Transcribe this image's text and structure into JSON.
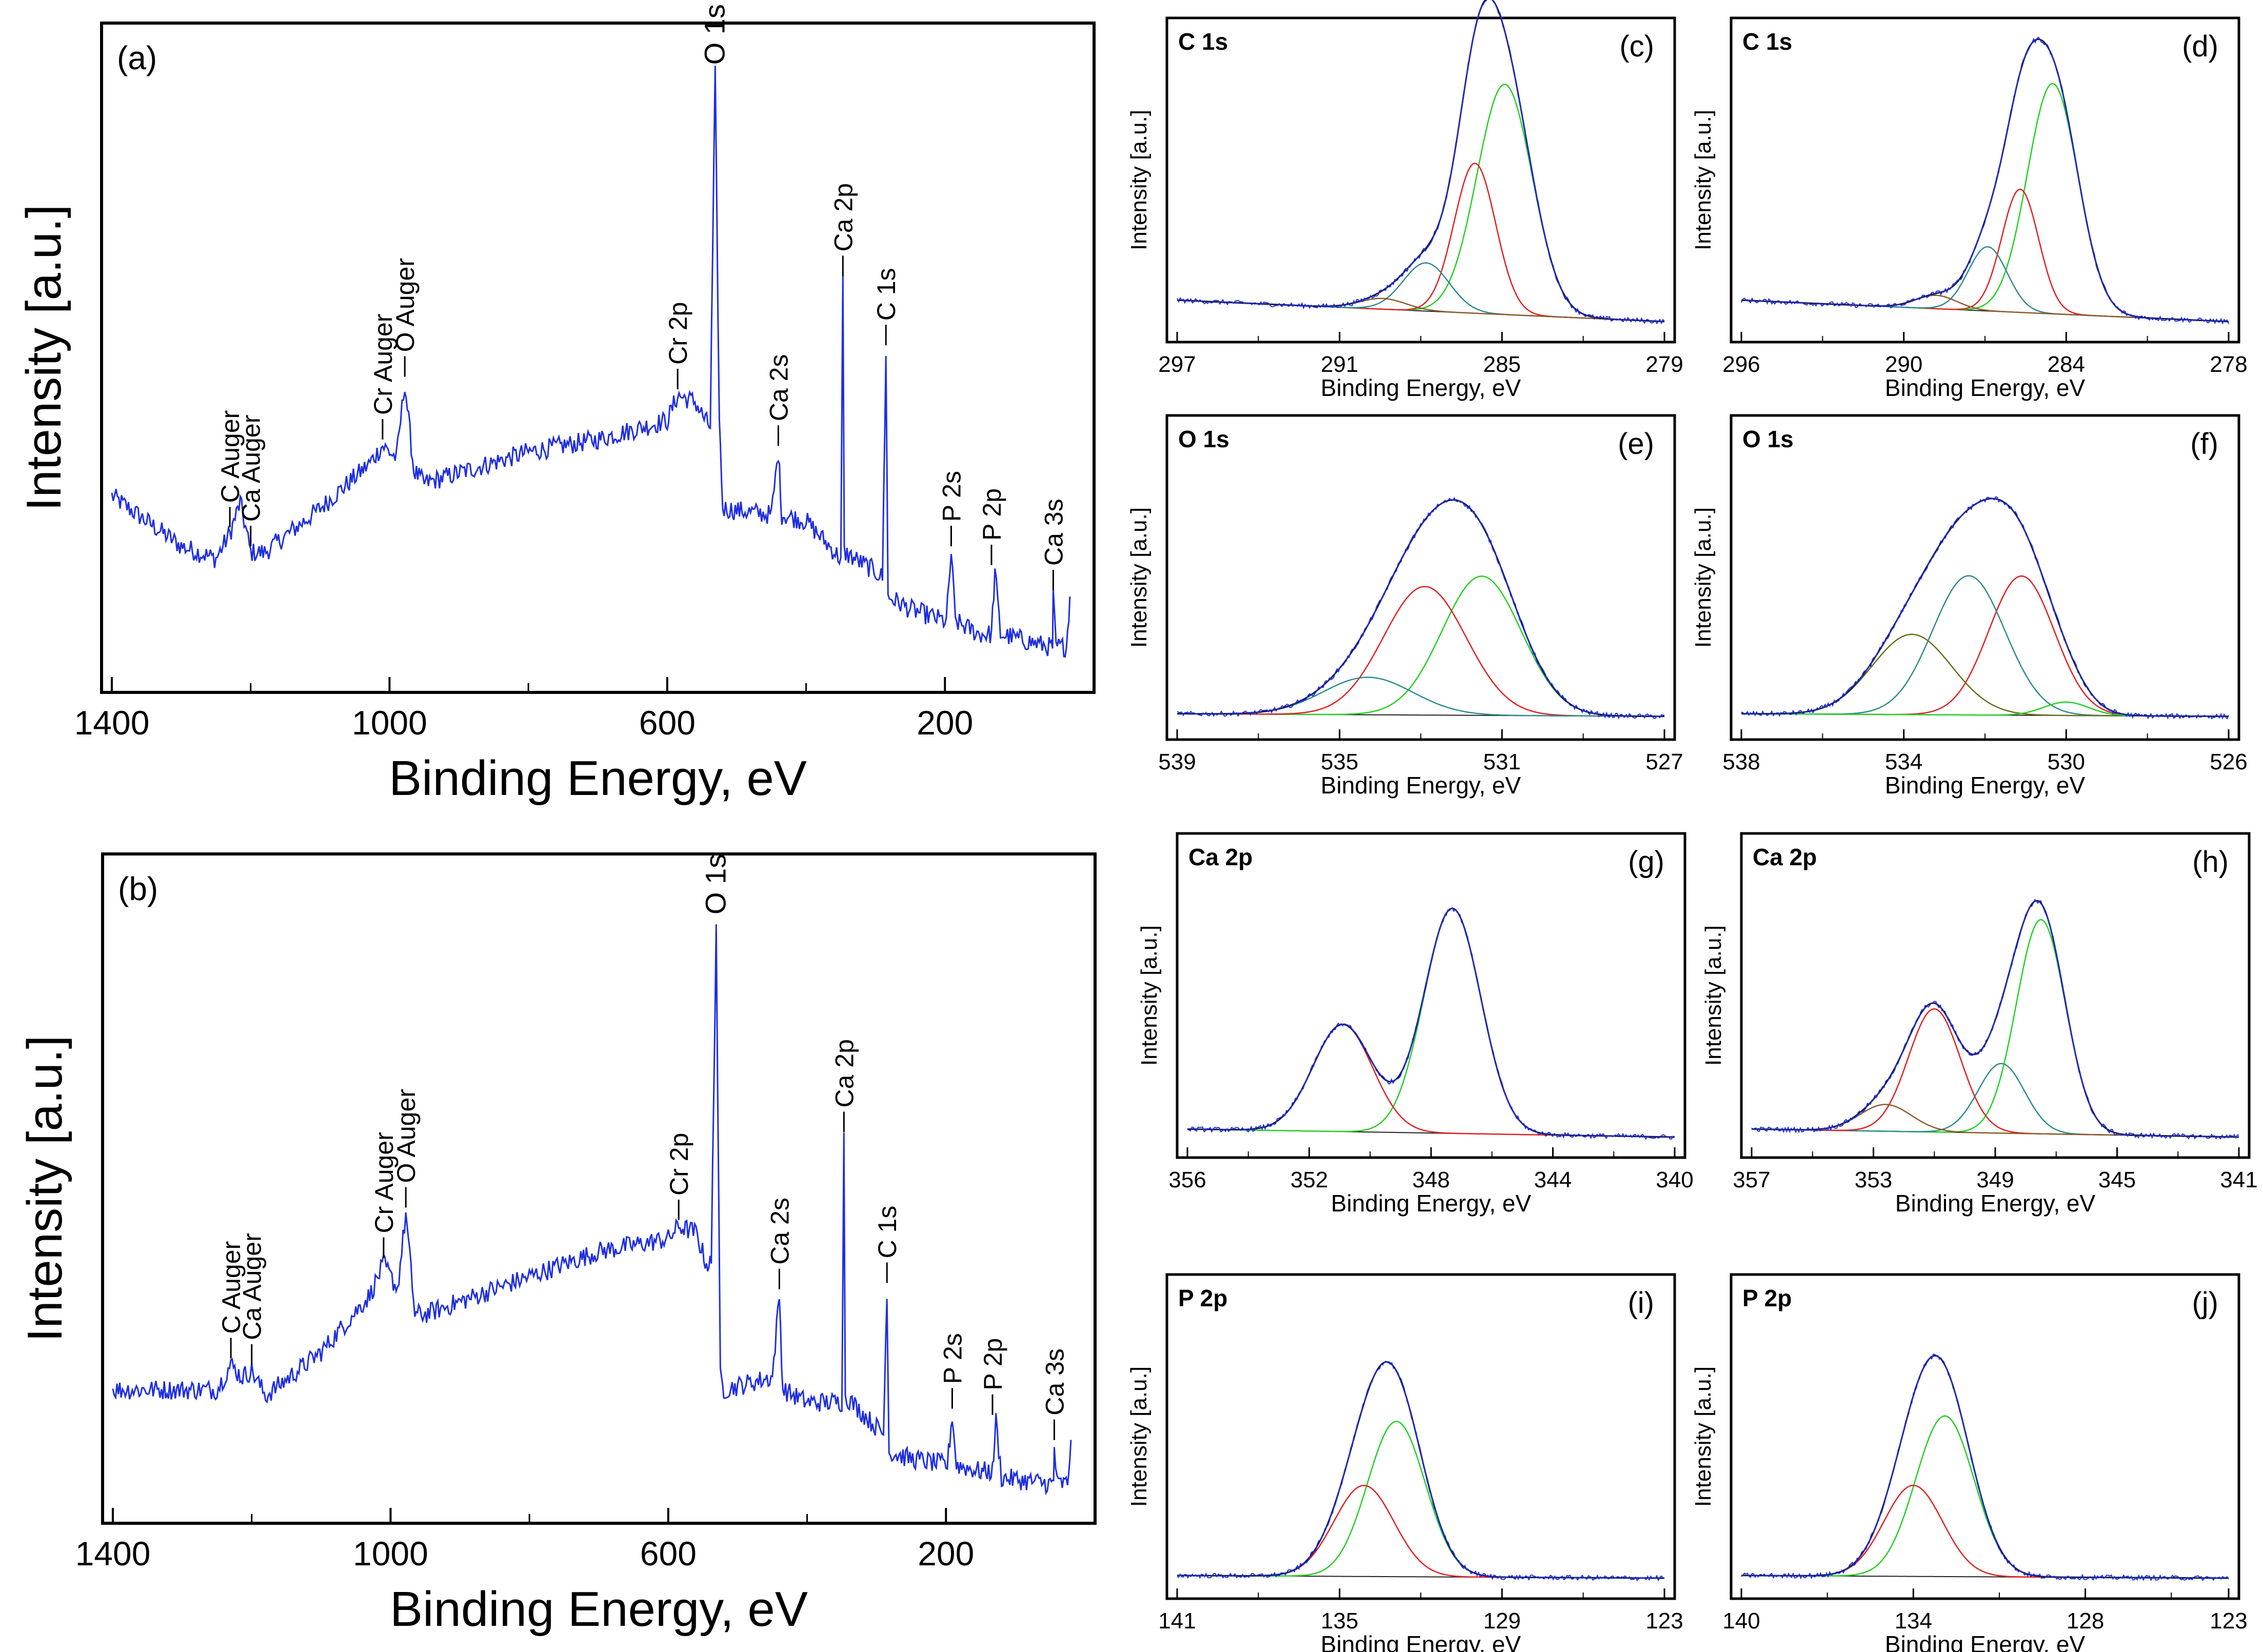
{
  "figure": {
    "colors": {
      "spectrum": "#1f2fe0",
      "envelope": "#1a1a40",
      "background": "#202020"
    },
    "y_axis_common": "Intensity [a.u.]",
    "x_axis_common": "Binding Energy, eV"
  },
  "chart_data": [
    {
      "id": "a",
      "type": "line",
      "panel_label": "(a)",
      "title": "",
      "xlabel": "Binding Energy, eV",
      "ylabel": "Intensity [a.u.]",
      "xlim": [
        1400,
        0
      ],
      "reversed_x": true,
      "ylim": [
        0,
        100
      ],
      "xticks": [
        1400,
        1000,
        600,
        200
      ],
      "series": [
        {
          "name": "survey",
          "x": [
            1400,
            1300,
            1250,
            1230,
            1215,
            1200,
            1180,
            1100,
            1030,
            1010,
            990,
            978,
            965,
            950,
            800,
            700,
            600,
            585,
            560,
            545,
            538,
            531,
            525,
            520,
            450,
            440,
            435,
            400,
            350,
            347,
            345,
            300,
            290,
            285,
            282,
            250,
            198,
            191,
            185,
            150,
            133,
            128,
            120,
            50,
            45,
            44,
            40,
            25,
            20
          ],
          "y": [
            28,
            20,
            18,
            22,
            27,
            19,
            19,
            26,
            33,
            36,
            34,
            46,
            32,
            30,
            35,
            37,
            40,
            44,
            43,
            40,
            39,
            95,
            40,
            26,
            25,
            35,
            25,
            24,
            18,
            62,
            19,
            16,
            15,
            51,
            12,
            10,
            8,
            19,
            8,
            6,
            6,
            16,
            6,
            4,
            4,
            12,
            4,
            4,
            12
          ]
        }
      ],
      "annotations": [
        {
          "text": "C Auger",
          "x": 1230
        },
        {
          "text": "Ca Auger",
          "x": 1200
        },
        {
          "text": "Cr Auger",
          "x": 1010
        },
        {
          "text": "O Auger",
          "x": 978
        },
        {
          "text": "Cr 2p",
          "x": 585
        },
        {
          "text": "O 1s",
          "x": 531
        },
        {
          "text": "Ca 2s",
          "x": 440
        },
        {
          "text": "Ca 2p",
          "x": 347
        },
        {
          "text": "C 1s",
          "x": 285
        },
        {
          "text": "P 2s",
          "x": 191
        },
        {
          "text": "P 2p",
          "x": 133
        },
        {
          "text": "Ca 3s",
          "x": 44
        }
      ]
    },
    {
      "id": "b",
      "type": "line",
      "panel_label": "(b)",
      "title": "",
      "xlabel": "Binding Energy, eV",
      "ylabel": "Intensity [a.u.]",
      "xlim": [
        1400,
        0
      ],
      "reversed_x": true,
      "ylim": [
        0,
        100
      ],
      "xticks": [
        1400,
        1000,
        600,
        200
      ],
      "series": [
        {
          "name": "survey",
          "x": [
            1400,
            1300,
            1250,
            1230,
            1215,
            1200,
            1180,
            1100,
            1030,
            1010,
            990,
            978,
            965,
            950,
            800,
            700,
            600,
            585,
            560,
            545,
            538,
            531,
            525,
            520,
            450,
            440,
            435,
            400,
            350,
            347,
            345,
            300,
            290,
            285,
            282,
            250,
            198,
            191,
            185,
            150,
            133,
            128,
            120,
            50,
            45,
            44,
            40,
            25,
            20
          ],
          "y": [
            18,
            18,
            18,
            22,
            20,
            21,
            17,
            24,
            33,
            38,
            34,
            46,
            30,
            30,
            36,
            40,
            42,
            44,
            43,
            38,
            38,
            92,
            20,
            18,
            20,
            33,
            18,
            16,
            16,
            58,
            17,
            12,
            11,
            34,
            8,
            7,
            6,
            14,
            6,
            5,
            5,
            13,
            4,
            3,
            3,
            9,
            3,
            3,
            10
          ]
        }
      ],
      "annotations": [
        {
          "text": "C Auger",
          "x": 1230
        },
        {
          "text": "Ca Auger",
          "x": 1200
        },
        {
          "text": "Cr Auger",
          "x": 1010
        },
        {
          "text": "O Auger",
          "x": 978
        },
        {
          "text": "Cr 2p",
          "x": 585
        },
        {
          "text": "O 1s",
          "x": 531
        },
        {
          "text": "Ca 2s",
          "x": 440
        },
        {
          "text": "Ca 2p",
          "x": 347
        },
        {
          "text": "C 1s",
          "x": 285
        },
        {
          "text": "P 2s",
          "x": 191
        },
        {
          "text": "P 2p",
          "x": 133
        },
        {
          "text": "Ca 3s",
          "x": 44
        }
      ]
    },
    {
      "id": "c",
      "type": "line",
      "panel_label": "(c)",
      "title": "C 1s",
      "xlabel": "Binding Energy, eV",
      "ylabel": "Intensity [a.u.]",
      "xlim": [
        297,
        279
      ],
      "reversed_x": true,
      "ylim": [
        0,
        100
      ],
      "xticks": [
        297,
        291,
        285,
        279
      ],
      "background": {
        "start": 8,
        "end": 0
      },
      "components": [
        {
          "name": "green",
          "color": "#22d022",
          "center": 284.9,
          "fwhm": 2.4,
          "height": 86
        },
        {
          "name": "red",
          "color": "#e02020",
          "center": 286.0,
          "fwhm": 1.8,
          "height": 56
        },
        {
          "name": "teal",
          "color": "#2e8b8b",
          "center": 287.8,
          "fwhm": 2.0,
          "height": 18
        },
        {
          "name": "brown",
          "color": "#8b5a2b",
          "center": 289.4,
          "fwhm": 2.0,
          "height": 4
        }
      ]
    },
    {
      "id": "d",
      "type": "line",
      "panel_label": "(d)",
      "title": "C 1s",
      "xlabel": "Binding Energy, eV",
      "ylabel": "Intensity [a.u.]",
      "xlim": [
        296,
        278
      ],
      "reversed_x": true,
      "ylim": [
        0,
        100
      ],
      "xticks": [
        296,
        290,
        284,
        278
      ],
      "background": {
        "start": 8,
        "end": 0
      },
      "components": [
        {
          "name": "green",
          "color": "#22d022",
          "center": 284.5,
          "fwhm": 2.2,
          "height": 86
        },
        {
          "name": "red",
          "color": "#e02020",
          "center": 285.7,
          "fwhm": 1.6,
          "height": 46
        },
        {
          "name": "teal",
          "color": "#2e8b8b",
          "center": 286.9,
          "fwhm": 1.7,
          "height": 24
        },
        {
          "name": "brown",
          "color": "#8b5a2b",
          "center": 288.8,
          "fwhm": 1.8,
          "height": 5
        }
      ]
    },
    {
      "id": "e",
      "type": "line",
      "panel_label": "(e)",
      "title": "O 1s",
      "xlabel": "Binding Energy, eV",
      "ylabel": "Intensity [a.u.]",
      "xlim": [
        539,
        527
      ],
      "reversed_x": true,
      "ylim": [
        0,
        100
      ],
      "xticks": [
        539,
        535,
        531,
        527
      ],
      "background": {
        "start": 2,
        "end": 1
      },
      "components": [
        {
          "name": "green",
          "color": "#22d022",
          "center": 531.5,
          "fwhm": 2.3,
          "height": 52
        },
        {
          "name": "red",
          "color": "#e02020",
          "center": 532.9,
          "fwhm": 2.4,
          "height": 48
        },
        {
          "name": "teal",
          "color": "#2e8b8b",
          "center": 534.3,
          "fwhm": 2.6,
          "height": 14
        }
      ]
    },
    {
      "id": "f",
      "type": "line",
      "panel_label": "(f)",
      "title": "O 1s",
      "xlabel": "Binding Energy, eV",
      "ylabel": "Intensity [a.u.]",
      "xlim": [
        538,
        526
      ],
      "reversed_x": true,
      "ylim": [
        0,
        100
      ],
      "xticks": [
        538,
        534,
        530,
        526
      ],
      "background": {
        "start": 2,
        "end": 1
      },
      "components": [
        {
          "name": "red",
          "color": "#e02020",
          "center": 531.1,
          "fwhm": 1.9,
          "height": 52
        },
        {
          "name": "teal",
          "color": "#2e8b8b",
          "center": 532.4,
          "fwhm": 2.1,
          "height": 52
        },
        {
          "name": "brown",
          "color": "#6b6b1a",
          "center": 533.8,
          "fwhm": 2.3,
          "height": 30
        },
        {
          "name": "green",
          "color": "#22d022",
          "center": 530.0,
          "fwhm": 1.3,
          "height": 5
        }
      ]
    },
    {
      "id": "g",
      "type": "line",
      "panel_label": "(g)",
      "title": "Ca 2p",
      "xlabel": "Binding Energy, eV",
      "ylabel": "Intensity [a.u.]",
      "xlim": [
        356,
        340
      ],
      "reversed_x": true,
      "ylim": [
        0,
        100
      ],
      "xticks": [
        356,
        352,
        348,
        344,
        340
      ],
      "background": {
        "start": 3,
        "end": 0
      },
      "components": [
        {
          "name": "green",
          "color": "#22d022",
          "center": 347.3,
          "fwhm": 2.2,
          "height": 84
        },
        {
          "name": "red",
          "color": "#e02020",
          "center": 350.9,
          "fwhm": 2.3,
          "height": 40
        }
      ]
    },
    {
      "id": "h",
      "type": "line",
      "panel_label": "(h)",
      "title": "Ca 2p",
      "xlabel": "Binding Energy, eV",
      "ylabel": "Intensity [a.u.]",
      "xlim": [
        357,
        341
      ],
      "reversed_x": true,
      "ylim": [
        0,
        100
      ],
      "xticks": [
        357,
        353,
        349,
        345,
        341
      ],
      "background": {
        "start": 3,
        "end": 0
      },
      "components": [
        {
          "name": "green",
          "color": "#22d022",
          "center": 347.5,
          "fwhm": 1.9,
          "height": 80
        },
        {
          "name": "teal",
          "color": "#2e8b8b",
          "center": 348.8,
          "fwhm": 1.8,
          "height": 26
        },
        {
          "name": "red",
          "color": "#e02020",
          "center": 351.0,
          "fwhm": 2.0,
          "height": 46
        },
        {
          "name": "brown",
          "color": "#8b5a2b",
          "center": 352.6,
          "fwhm": 2.0,
          "height": 10
        }
      ]
    },
    {
      "id": "i",
      "type": "line",
      "panel_label": "(i)",
      "title": "P 2p",
      "xlabel": "Binding Energy, eV",
      "ylabel": "Intensity [a.u.]",
      "xlim": [
        141,
        123
      ],
      "reversed_x": true,
      "ylim": [
        0,
        100
      ],
      "xticks": [
        141,
        135,
        129,
        123
      ],
      "background": {
        "start": 1,
        "end": 0
      },
      "components": [
        {
          "name": "green",
          "color": "#22d022",
          "center": 132.9,
          "fwhm": 2.5,
          "height": 58
        },
        {
          "name": "red",
          "color": "#e02020",
          "center": 134.1,
          "fwhm": 2.6,
          "height": 34
        }
      ]
    },
    {
      "id": "j",
      "type": "line",
      "panel_label": "(j)",
      "title": "P 2p",
      "xlabel": "Binding Energy, eV",
      "ylabel": "Intensity [a.u.]",
      "xlim": [
        140,
        123
      ],
      "reversed_x": true,
      "ylim": [
        0,
        100
      ],
      "xticks": [
        140,
        134,
        128,
        123
      ],
      "background": {
        "start": 1,
        "end": 0
      },
      "components": [
        {
          "name": "green",
          "color": "#22d022",
          "center": 132.9,
          "fwhm": 2.4,
          "height": 60
        },
        {
          "name": "red",
          "color": "#e02020",
          "center": 134.0,
          "fwhm": 2.4,
          "height": 34
        }
      ]
    }
  ]
}
